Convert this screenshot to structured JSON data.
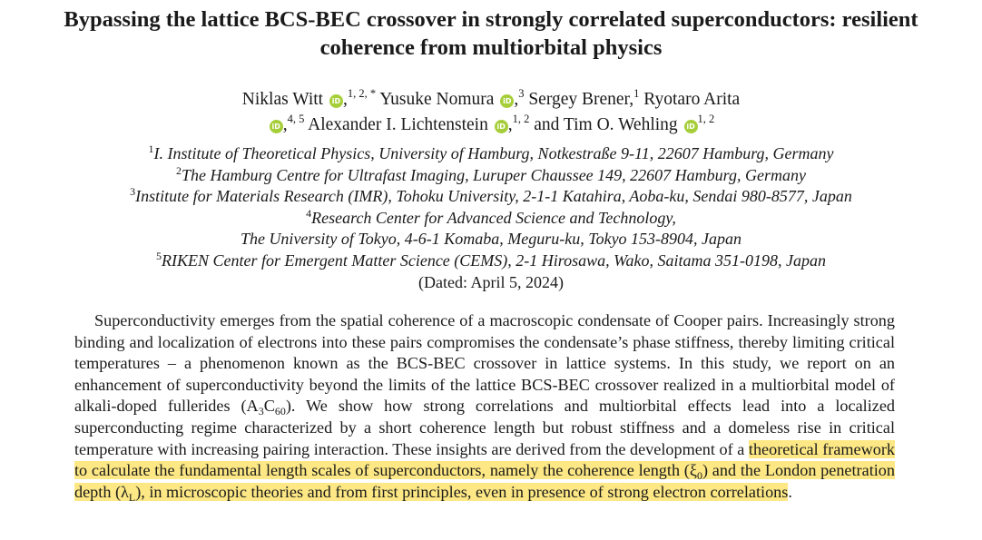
{
  "title": {
    "line1": "Bypassing the lattice BCS-BEC crossover in strongly correlated superconductors: resilient",
    "line2": "coherence from multiorbital physics"
  },
  "authors": [
    {
      "name": "Niklas Witt",
      "sup": "1, 2, *",
      "orcid": true
    },
    {
      "name": "Yusuke Nomura",
      "sup": "3",
      "orcid": true
    },
    {
      "name": "Sergey Brener,",
      "sup": "1",
      "orcid": false
    },
    {
      "name": "Ryotaro Arita",
      "sup": "4, 5",
      "orcid": true
    },
    {
      "name": "Alexander I. Lichtenstein",
      "sup": "1, 2",
      "orcid": true
    },
    {
      "name": "Tim O. Wehling",
      "sup": "1, 2",
      "orcid": true
    }
  ],
  "authors_conjunction": "and",
  "orcid_icon": "iD",
  "affiliations": [
    {
      "sup": "1",
      "text": "I. Institute of Theoretical Physics, University of Hamburg, Notkestraße 9-11, 22607 Hamburg, Germany"
    },
    {
      "sup": "2",
      "text": "The Hamburg Centre for Ultrafast Imaging, Luruper Chaussee 149, 22607 Hamburg, Germany"
    },
    {
      "sup": "3",
      "text": "Institute for Materials Research (IMR), Tohoku University, 2-1-1 Katahira, Aoba-ku, Sendai 980-8577, Japan"
    },
    {
      "sup": "4",
      "text": "Research Center for Advanced Science and Technology,"
    },
    {
      "sup": "",
      "text": "The University of Tokyo, 4-6-1 Komaba, Meguru-ku, Tokyo 153-8904, Japan"
    },
    {
      "sup": "5",
      "text": "RIKEN Center for Emergent Matter Science (CEMS), 2-1 Hirosawa, Wako, Saitama 351-0198, Japan"
    }
  ],
  "dated": "(Dated: April 5, 2024)",
  "abstract": {
    "part1": "Superconductivity emerges from the spatial coherence of a macroscopic condensate of Cooper pairs. Increasingly strong binding and localization of electrons into these pairs compromises the condensate’s phase stiffness, thereby limiting critical temperatures – a phenomenon known as the BCS-BEC crossover in lattice systems. In this study, we report on an enhancement of superconductivity beyond the limits of the lattice BCS-BEC crossover realized in a multiorbital model of alkali-doped fullerides (A",
    "sub1": "3",
    "part1b": "C",
    "sub2": "60",
    "part2": "). We show how strong correlations and multiorbital effects lead into a localized superconducting regime characterized by a short coherence length but robust stiffness and a domeless rise in critical temperature with increasing pairing interaction. These insights are derived from the development of a ",
    "highlight1": "theoretical framework to calculate the fundamental length scales of superconductors, namely the coherence length (ξ",
    "sub3": "0",
    "highlight2": ") and the London penetration depth (λ",
    "sub4": "L",
    "highlight3": "), in microscopic theories and from first principles, even in presence of strong electron correlations",
    "end": "."
  },
  "colors": {
    "highlight": "#fde885",
    "orcid": "#a6ce39"
  }
}
